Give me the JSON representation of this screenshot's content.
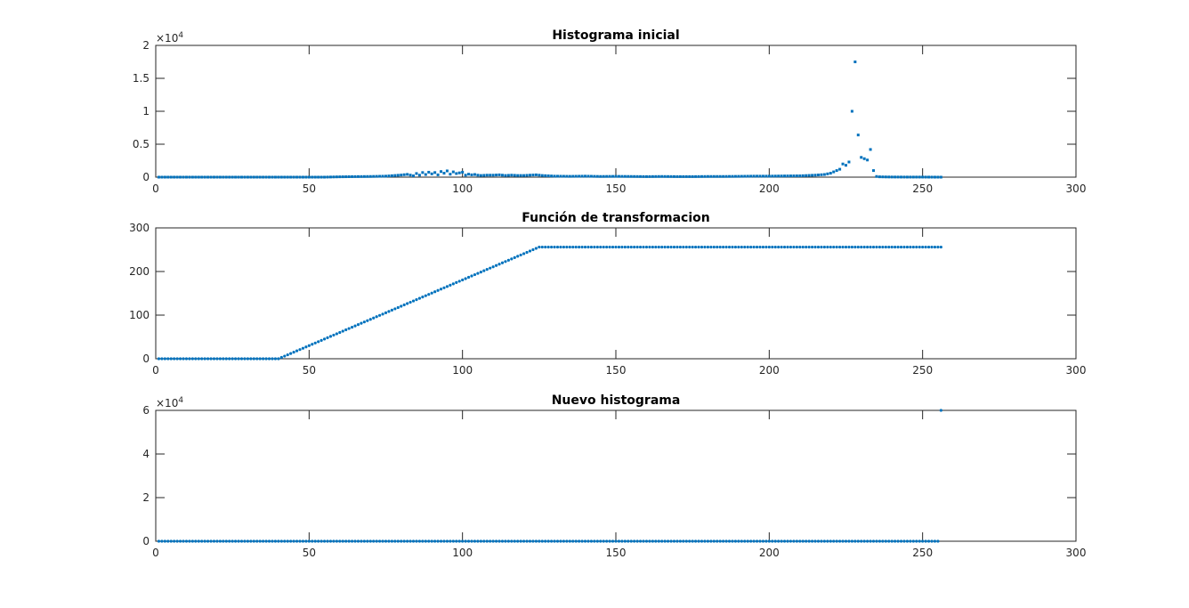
{
  "window": {
    "background": "#ffffff"
  },
  "colors": {
    "series": "#0072BD",
    "axes": "#262626"
  },
  "chart_data": [
    {
      "type": "scatter",
      "title": "Histograma inicial",
      "xlabel": "",
      "ylabel": "",
      "xlim": [
        0,
        300
      ],
      "ylim": [
        0,
        20000
      ],
      "xticks": [
        0,
        50,
        100,
        150,
        200,
        250,
        300
      ],
      "xtick_labels": [
        "0",
        "50",
        "100",
        "150",
        "200",
        "250",
        "300"
      ],
      "yticks": [
        0,
        5000,
        10000,
        15000,
        20000
      ],
      "ytick_labels": [
        "0",
        "0.5",
        "1",
        "1.5",
        "2"
      ],
      "y_exponent": {
        "base": "×10",
        "power": "4"
      },
      "grid": false,
      "marker": "square",
      "series": [
        {
          "x": [
            1,
            5,
            10,
            15,
            20,
            25,
            30,
            35,
            40,
            45,
            50,
            55,
            60,
            65,
            70,
            75,
            78,
            80,
            82,
            84,
            85,
            86,
            87,
            88,
            89,
            90,
            91,
            92,
            93,
            94,
            95,
            96,
            97,
            98,
            99,
            100,
            101,
            102,
            103,
            104,
            105,
            106,
            108,
            110,
            112,
            114,
            116,
            118,
            120,
            122,
            124,
            126,
            128,
            130,
            135,
            140,
            145,
            150,
            155,
            160,
            165,
            170,
            175,
            180,
            185,
            190,
            195,
            200,
            205,
            210,
            215,
            218,
            220,
            222,
            223,
            224,
            225,
            226,
            227,
            228,
            229,
            230,
            231,
            232,
            233,
            234,
            235,
            236,
            237,
            238,
            240,
            245,
            250,
            255,
            256
          ],
          "y": [
            0,
            0,
            0,
            0,
            0,
            0,
            0,
            0,
            0,
            0,
            0,
            0,
            50,
            80,
            100,
            150,
            250,
            320,
            420,
            200,
            550,
            300,
            700,
            400,
            750,
            500,
            700,
            350,
            850,
            600,
            950,
            450,
            800,
            550,
            650,
            750,
            300,
            450,
            350,
            400,
            300,
            250,
            300,
            300,
            350,
            250,
            300,
            250,
            250,
            300,
            350,
            250,
            200,
            150,
            120,
            150,
            100,
            120,
            100,
            80,
            100,
            80,
            80,
            100,
            100,
            120,
            150,
            150,
            180,
            200,
            300,
            400,
            600,
            1000,
            1200,
            2000,
            1800,
            2300,
            10000,
            17500,
            6400,
            3000,
            2800,
            2600,
            4200,
            1000,
            100,
            50,
            40,
            30,
            20,
            10,
            10,
            0,
            0
          ]
        }
      ]
    },
    {
      "type": "scatter",
      "title": "Función de transformacion",
      "xlabel": "",
      "ylabel": "",
      "xlim": [
        0,
        300
      ],
      "ylim": [
        0,
        300
      ],
      "xticks": [
        0,
        50,
        100,
        150,
        200,
        250,
        300
      ],
      "xtick_labels": [
        "0",
        "50",
        "100",
        "150",
        "200",
        "250",
        "300"
      ],
      "yticks": [
        0,
        100,
        200,
        300
      ],
      "ytick_labels": [
        "0",
        "100",
        "200",
        "300"
      ],
      "grid": false,
      "marker": "dot",
      "series": [
        {
          "x": [
            1,
            40,
            125,
            256
          ],
          "y": [
            0,
            0,
            256,
            256
          ]
        }
      ]
    },
    {
      "type": "scatter",
      "title": "Nuevo histograma",
      "xlabel": "",
      "ylabel": "",
      "xlim": [
        0,
        300
      ],
      "ylim": [
        0,
        60000
      ],
      "xticks": [
        0,
        50,
        100,
        150,
        200,
        250,
        300
      ],
      "xtick_labels": [
        "0",
        "50",
        "100",
        "150",
        "200",
        "250",
        "300"
      ],
      "yticks": [
        0,
        20000,
        40000,
        60000
      ],
      "ytick_labels": [
        "0",
        "2",
        "4",
        "6"
      ],
      "y_exponent": {
        "base": "×10",
        "power": "4"
      },
      "grid": false,
      "marker": "dot",
      "series": [
        {
          "x": [
            1,
            255,
            256
          ],
          "y": [
            0,
            0,
            60000
          ]
        }
      ]
    }
  ]
}
